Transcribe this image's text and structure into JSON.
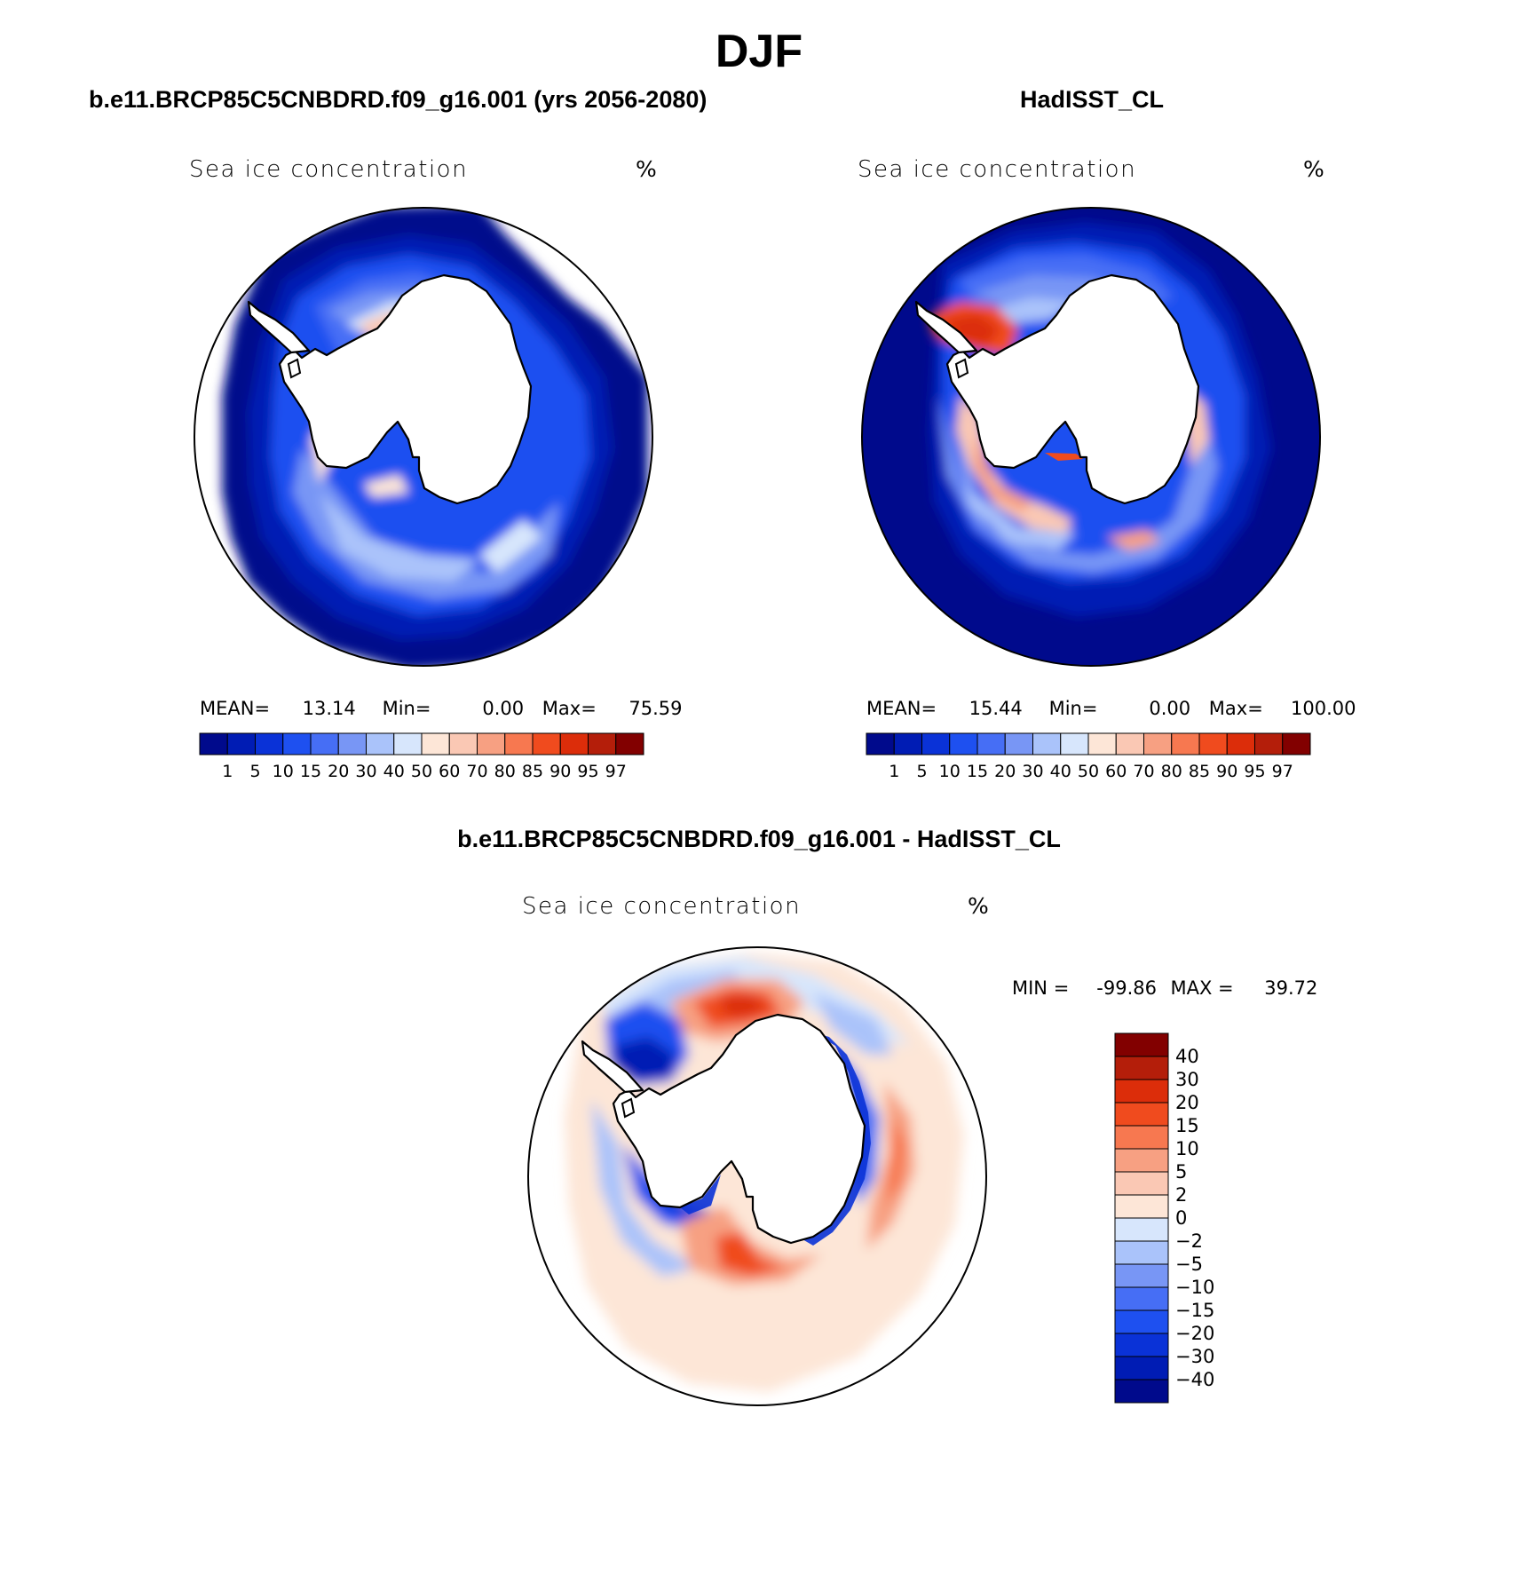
{
  "figure": {
    "title": "DJF"
  },
  "panels": [
    {
      "title": "b.e11.BRCP85C5CNBDRD.f09_g16.001 (yrs 2056-2080)",
      "field": "Sea ice concentration",
      "units": "%",
      "mean_label": "MEAN=",
      "mean_value": "13.14",
      "min_label": "Min=",
      "min_value": "0.00",
      "max_label": "Max=",
      "max_value": "75.59"
    },
    {
      "title": "HadISST_CL",
      "field": "Sea ice concentration",
      "units": "%",
      "mean_label": "MEAN=",
      "mean_value": "15.44",
      "min_label": "Min=",
      "min_value": "0.00",
      "max_label": "Max=",
      "max_value": "100.00"
    },
    {
      "title": "b.e11.BRCP85C5CNBDRD.f09_g16.001 - HadISST_CL",
      "field": "Sea ice concentration",
      "units": "%",
      "min_label": "MIN =",
      "min_value": "-99.86",
      "max_label": "MAX =",
      "max_value": "39.72"
    }
  ],
  "colorbars": {
    "concentration": {
      "levels": [
        "1",
        "5",
        "10",
        "15",
        "20",
        "30",
        "40",
        "50",
        "60",
        "70",
        "80",
        "85",
        "90",
        "95",
        "97"
      ],
      "colors": [
        "#000a8c",
        "#001cb4",
        "#0a32d7",
        "#1e50f0",
        "#466ef5",
        "#7896f5",
        "#aac3fa",
        "#d7e6fc",
        "#fde6d7",
        "#fac8b4",
        "#f7a082",
        "#f77850",
        "#f04b1e",
        "#dc2d0a",
        "#b41e0a",
        "#820000"
      ]
    },
    "difference": {
      "levels": [
        "40",
        "30",
        "20",
        "15",
        "10",
        "5",
        "2",
        "0",
        "-2",
        "-5",
        "-10",
        "-15",
        "-20",
        "-30",
        "-40"
      ],
      "colors": [
        "#820000",
        "#b41e0a",
        "#dc2d0a",
        "#f04b1e",
        "#f77850",
        "#f7a082",
        "#fac8b4",
        "#fde6d7",
        "#d7e6fc",
        "#aac3fa",
        "#7896f5",
        "#466ef5",
        "#1e50f0",
        "#0a32d7",
        "#001cb4",
        "#000a8c"
      ]
    }
  }
}
